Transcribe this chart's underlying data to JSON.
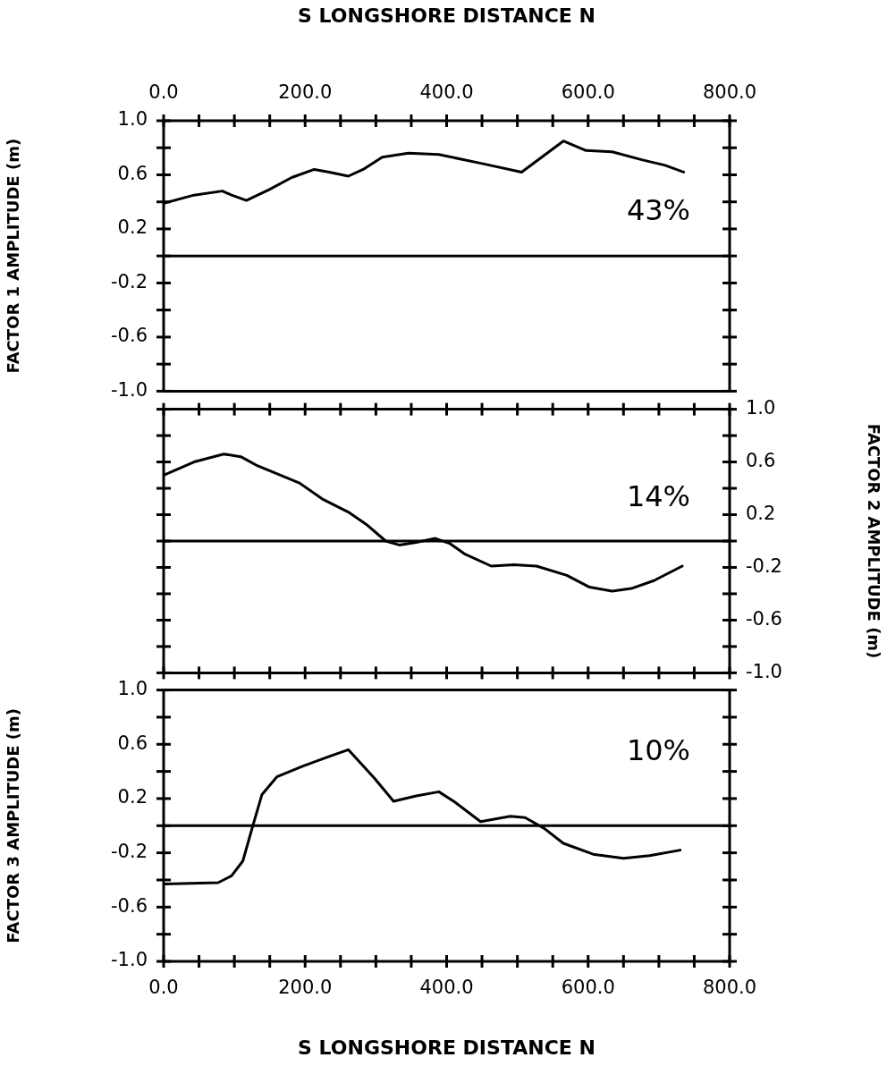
{
  "chart_data": [
    {
      "type": "line",
      "ylabel": "FACTOR 1 AMPLITUDE (m)",
      "xlabel": "S LONGSHORE DISTANCE N",
      "color": "#000000",
      "x": [
        0,
        43,
        83,
        96,
        117,
        149,
        181,
        213,
        234,
        261,
        282,
        309,
        346,
        389,
        453,
        506,
        565,
        597,
        634,
        677,
        709,
        735
      ],
      "values": [
        0.39,
        0.45,
        0.48,
        0.45,
        0.41,
        0.49,
        0.58,
        0.64,
        0.62,
        0.59,
        0.64,
        0.73,
        0.76,
        0.75,
        0.68,
        0.62,
        0.85,
        0.78,
        0.77,
        0.71,
        0.67,
        0.62
      ],
      "xlim": [
        0,
        800
      ],
      "xticks": [
        {
          "value": 0,
          "label": "0.0"
        },
        {
          "value": 50,
          "label": null
        },
        {
          "value": 100,
          "label": null
        },
        {
          "value": 150,
          "label": null
        },
        {
          "value": 200,
          "label": "200.0"
        },
        {
          "value": 250,
          "label": null
        },
        {
          "value": 300,
          "label": null
        },
        {
          "value": 350,
          "label": null
        },
        {
          "value": 400,
          "label": "400.0"
        },
        {
          "value": 450,
          "label": null
        },
        {
          "value": 500,
          "label": null
        },
        {
          "value": 550,
          "label": null
        },
        {
          "value": 600,
          "label": "600.0"
        },
        {
          "value": 650,
          "label": null
        },
        {
          "value": 700,
          "label": null
        },
        {
          "value": 750,
          "label": null
        },
        {
          "value": 800,
          "label": "800.0"
        }
      ],
      "ylim": [
        -1,
        1
      ],
      "yticks": [
        {
          "value": -1,
          "label": "-1.0"
        },
        {
          "value": -0.8,
          "label": null
        },
        {
          "value": -0.6,
          "label": "-0.6"
        },
        {
          "value": -0.4,
          "label": null
        },
        {
          "value": -0.2,
          "label": "-0.2"
        },
        {
          "value": 0,
          "label": null
        },
        {
          "value": 0.2,
          "label": "0.2"
        },
        {
          "value": 0.4,
          "label": null
        },
        {
          "value": 0.6,
          "label": "0.6"
        },
        {
          "value": 0.8,
          "label": null
        },
        {
          "value": 1,
          "label": "1.0"
        }
      ],
      "ref_lines": [
        {
          "axis": "y",
          "value": 0
        }
      ],
      "annotations": [
        "43%"
      ]
    },
    {
      "type": "line",
      "y2label": "FACTOR 2 AMPLITUDE (m)",
      "tick_labels": "y2",
      "x": [
        0,
        43,
        85,
        109,
        133,
        192,
        224,
        261,
        288,
        314,
        333,
        357,
        384,
        405,
        426,
        463,
        495,
        527,
        570,
        602,
        634,
        661,
        693,
        733
      ],
      "series": [
        {
          "color": "#000000",
          "axis": "y2",
          "values": [
            0.5,
            0.6,
            0.66,
            0.64,
            0.57,
            0.44,
            0.32,
            0.22,
            0.12,
            0.0,
            -0.03,
            -0.01,
            0.02,
            -0.02,
            -0.1,
            -0.19,
            -0.18,
            -0.19,
            -0.26,
            -0.35,
            -0.38,
            -0.36,
            -0.3,
            -0.19
          ]
        }
      ],
      "xlim": [
        0,
        800
      ],
      "y2lim": [
        -1,
        1
      ],
      "y2ticks": [
        {
          "value": -1,
          "label": "-1.0"
        },
        {
          "value": -0.8,
          "label": null
        },
        {
          "value": -0.6,
          "label": "-0.6"
        },
        {
          "value": -0.4,
          "label": null
        },
        {
          "value": -0.2,
          "label": "-0.2"
        },
        {
          "value": 0,
          "label": null
        },
        {
          "value": 0.2,
          "label": "0.2"
        },
        {
          "value": 0.4,
          "label": null
        },
        {
          "value": 0.6,
          "label": "0.6"
        },
        {
          "value": 0.8,
          "label": null
        },
        {
          "value": 1,
          "label": "1.0"
        }
      ],
      "ref_lines": [
        {
          "axis": "y2",
          "value": 0
        }
      ],
      "annotations": [
        "14%"
      ]
    },
    {
      "type": "line",
      "ylabel": "FACTOR 3 AMPLITUDE (m)",
      "xlabel": "S LONGSHORE DISTANCE N",
      "color": "#000000",
      "x": [
        0,
        77,
        96,
        112,
        125,
        139,
        160,
        197,
        234,
        261,
        298,
        325,
        357,
        389,
        410,
        448,
        490,
        511,
        538,
        565,
        607,
        650,
        687,
        730
      ],
      "values": [
        -0.43,
        -0.42,
        -0.37,
        -0.26,
        -0.02,
        0.23,
        0.36,
        0.44,
        0.51,
        0.56,
        0.35,
        0.18,
        0.22,
        0.25,
        0.18,
        0.03,
        0.07,
        0.06,
        -0.02,
        -0.13,
        -0.21,
        -0.24,
        -0.22,
        -0.18
      ],
      "xlim": [
        0,
        800
      ],
      "xticks": [
        {
          "value": 0,
          "label": "0.0"
        },
        {
          "value": 50,
          "label": null
        },
        {
          "value": 100,
          "label": null
        },
        {
          "value": 150,
          "label": null
        },
        {
          "value": 200,
          "label": "200.0"
        },
        {
          "value": 250,
          "label": null
        },
        {
          "value": 300,
          "label": null
        },
        {
          "value": 350,
          "label": null
        },
        {
          "value": 400,
          "label": "400.0"
        },
        {
          "value": 450,
          "label": null
        },
        {
          "value": 500,
          "label": null
        },
        {
          "value": 550,
          "label": null
        },
        {
          "value": 600,
          "label": "600.0"
        },
        {
          "value": 650,
          "label": null
        },
        {
          "value": 700,
          "label": null
        },
        {
          "value": 750,
          "label": null
        },
        {
          "value": 800,
          "label": "800.0"
        }
      ],
      "ylim": [
        -1,
        1
      ],
      "yticks": [
        {
          "value": -1,
          "label": "-1.0"
        },
        {
          "value": -0.8,
          "label": null
        },
        {
          "value": -0.6,
          "label": "-0.6"
        },
        {
          "value": -0.4,
          "label": null
        },
        {
          "value": -0.2,
          "label": "-0.2"
        },
        {
          "value": 0,
          "label": null
        },
        {
          "value": 0.2,
          "label": "0.2"
        },
        {
          "value": 0.4,
          "label": null
        },
        {
          "value": 0.6,
          "label": "0.6"
        },
        {
          "value": 0.8,
          "label": null
        },
        {
          "value": 1,
          "label": "1.0"
        }
      ],
      "ref_lines": [
        {
          "axis": "y",
          "value": 0
        }
      ],
      "annotations": [
        "10%"
      ]
    }
  ]
}
